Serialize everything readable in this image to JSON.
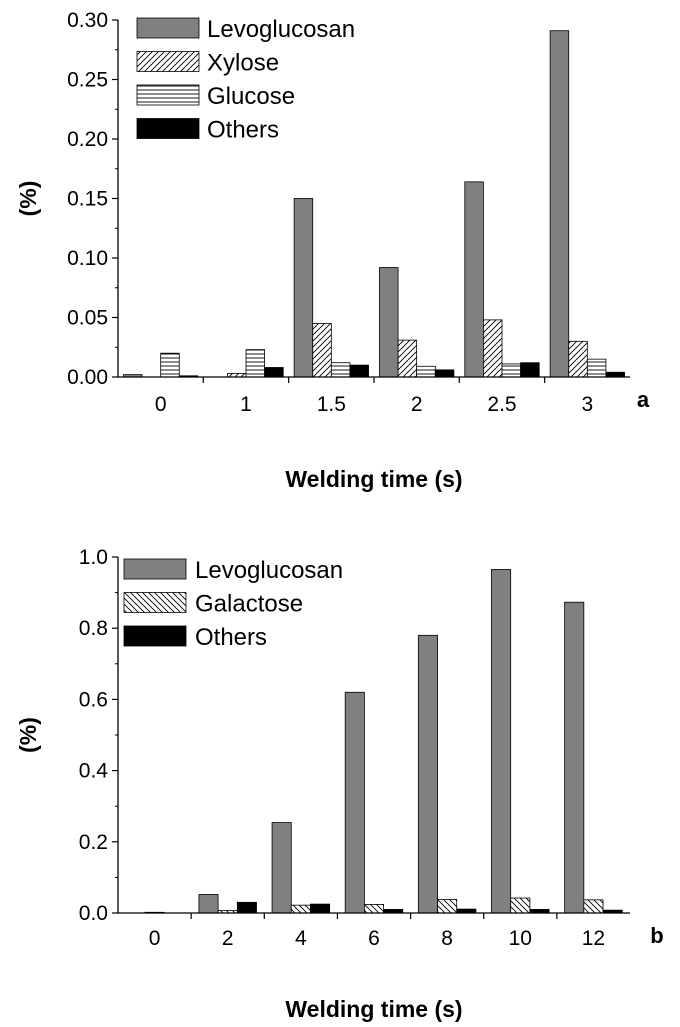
{
  "chart_data": [
    {
      "type": "bar",
      "panel_label": "a",
      "xlabel": "Welding time (s)",
      "ylabel": "(%)",
      "ylim": [
        0,
        0.3
      ],
      "yticks": [
        0,
        0.05,
        0.1,
        0.15,
        0.2,
        0.25,
        0.3
      ],
      "ytick_labels": [
        "0.00",
        "0.05",
        "0.10",
        "0.15",
        "0.20",
        "0.25",
        "0.30"
      ],
      "grid": false,
      "legend_position": "top-left",
      "categories": [
        "0",
        "1",
        "1.5",
        "2",
        "2.5",
        "3"
      ],
      "series": [
        {
          "name": "Levoglucosan",
          "pattern": "solid-gray",
          "color": "#808080",
          "values": [
            0.002,
            0.0,
            0.15,
            0.092,
            0.164,
            0.291
          ]
        },
        {
          "name": "Xylose",
          "pattern": "diagonal-hatch",
          "color": "#000000",
          "values": [
            0.0,
            0.003,
            0.045,
            0.031,
            0.048,
            0.03
          ]
        },
        {
          "name": "Glucose",
          "pattern": "horizontal-hatch",
          "color": "#000000",
          "values": [
            0.02,
            0.023,
            0.012,
            0.009,
            0.011,
            0.015
          ]
        },
        {
          "name": "Others",
          "pattern": "solid-black",
          "color": "#000000",
          "values": [
            0.001,
            0.008,
            0.01,
            0.006,
            0.012,
            0.004
          ]
        }
      ]
    },
    {
      "type": "bar",
      "panel_label": "b",
      "xlabel": "Welding time (s)",
      "ylabel": "(%)",
      "ylim": [
        0,
        1.0
      ],
      "yticks": [
        0,
        0.2,
        0.4,
        0.6,
        0.8,
        1.0
      ],
      "ytick_labels": [
        "0.0",
        "0.2",
        "0.4",
        "0.6",
        "0.8",
        "1.0"
      ],
      "grid": false,
      "legend_position": "top-left",
      "categories": [
        "0",
        "2",
        "4",
        "6",
        "8",
        "10",
        "12"
      ],
      "series": [
        {
          "name": "Levoglucosan",
          "pattern": "solid-gray",
          "color": "#808080",
          "values": [
            0.0,
            0.052,
            0.254,
            0.62,
            0.78,
            0.965,
            0.873
          ]
        },
        {
          "name": "Galactose",
          "pattern": "diagonal-hatch-back",
          "color": "#000000",
          "values": [
            0.002,
            0.007,
            0.022,
            0.024,
            0.038,
            0.042,
            0.037
          ]
        },
        {
          "name": "Others",
          "pattern": "solid-black",
          "color": "#000000",
          "values": [
            0.0,
            0.03,
            0.025,
            0.01,
            0.011,
            0.01,
            0.008
          ]
        }
      ]
    }
  ]
}
